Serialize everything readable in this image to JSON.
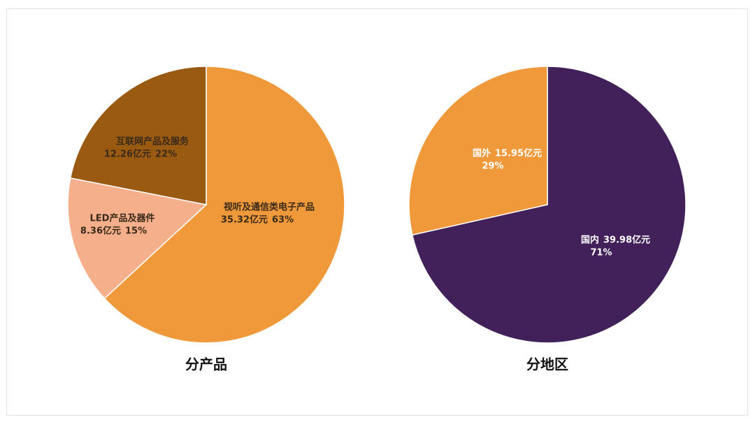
{
  "chart_data": [
    {
      "type": "pie",
      "title": "分产品",
      "categories": [
        "视听及通信类电子产品",
        "LED产品及器件",
        "互联网产品及服务"
      ],
      "values": [
        35.32,
        8.36,
        12.26
      ],
      "value_labels": [
        "35.32亿元",
        "8.36亿元",
        "12.26亿元"
      ],
      "percent_labels": [
        "63%",
        "15%",
        "22%"
      ],
      "colors": [
        "#f0993a",
        "#f5b08b",
        "#9b5a12"
      ]
    },
    {
      "type": "pie",
      "title": "分地区",
      "categories": [
        "国内",
        "国外"
      ],
      "values": [
        39.98,
        15.95
      ],
      "value_labels": [
        "39.98亿元",
        "15.95亿元"
      ],
      "percent_labels": [
        "71%",
        "29%"
      ],
      "colors": [
        "#42215a",
        "#f0993a"
      ]
    }
  ]
}
